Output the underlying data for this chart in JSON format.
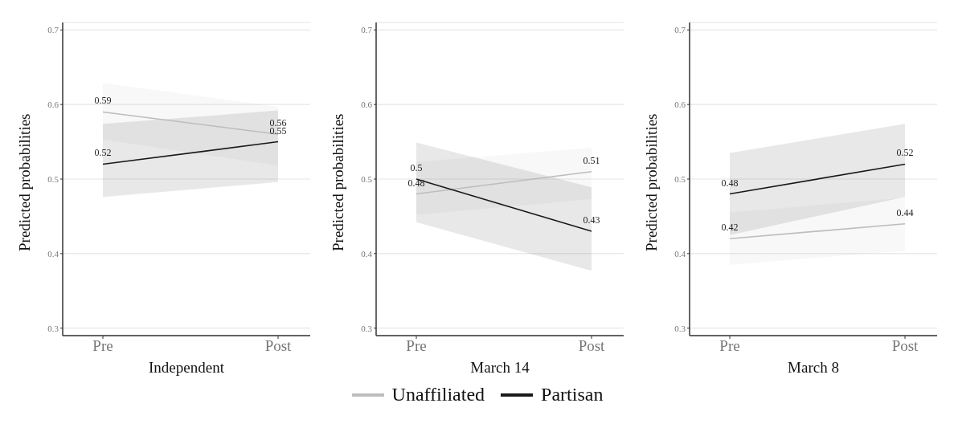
{
  "chart_data": [
    {
      "type": "line",
      "xlabel": "Independent",
      "ylabel": "Predicted probabilities",
      "categories": [
        "Pre",
        "Post"
      ],
      "ylim": [
        0.29,
        0.71
      ],
      "yticks": [
        0.3,
        0.4,
        0.5,
        0.6,
        0.7
      ],
      "grid": "y",
      "legend": "bottom",
      "data_labels": true,
      "marker": "none",
      "series": [
        {
          "name": "Unaffiliated",
          "color": "#bdbdbd",
          "values": [
            0.59,
            0.56
          ],
          "lower": [
            0.553,
            0.518
          ],
          "upper": [
            0.629,
            0.597
          ]
        },
        {
          "name": "Partisan",
          "color": "#1a1a1a",
          "values": [
            0.52,
            0.55
          ],
          "lower": [
            0.476,
            0.496
          ],
          "upper": [
            0.574,
            0.592
          ]
        }
      ]
    },
    {
      "type": "line",
      "xlabel": "March 14",
      "ylabel": "Predicted probabilities",
      "categories": [
        "Pre",
        "Post"
      ],
      "ylim": [
        0.29,
        0.71
      ],
      "yticks": [
        0.3,
        0.4,
        0.5,
        0.6,
        0.7
      ],
      "grid": "y",
      "legend": "bottom",
      "data_labels": true,
      "marker": "none",
      "series": [
        {
          "name": "Unaffiliated",
          "color": "#bdbdbd",
          "values": [
            0.48,
            0.51
          ],
          "lower": [
            0.452,
            0.473
          ],
          "upper": [
            0.523,
            0.542
          ]
        },
        {
          "name": "Partisan",
          "color": "#1a1a1a",
          "values": [
            0.5,
            0.43
          ],
          "lower": [
            0.442,
            0.377
          ],
          "upper": [
            0.549,
            0.489
          ]
        }
      ]
    },
    {
      "type": "line",
      "xlabel": "March 8",
      "ylabel": "Predicted probabilities",
      "categories": [
        "Pre",
        "Post"
      ],
      "ylim": [
        0.29,
        0.71
      ],
      "yticks": [
        0.3,
        0.4,
        0.5,
        0.6,
        0.7
      ],
      "grid": "y",
      "legend": "bottom",
      "data_labels": true,
      "marker": "none",
      "series": [
        {
          "name": "Unaffiliated",
          "color": "#bdbdbd",
          "values": [
            0.42,
            0.44
          ],
          "lower": [
            0.385,
            0.404
          ],
          "upper": [
            0.455,
            0.475
          ]
        },
        {
          "name": "Partisan",
          "color": "#1a1a1a",
          "values": [
            0.48,
            0.52
          ],
          "lower": [
            0.425,
            0.476
          ],
          "upper": [
            0.535,
            0.574
          ]
        }
      ]
    }
  ]
}
